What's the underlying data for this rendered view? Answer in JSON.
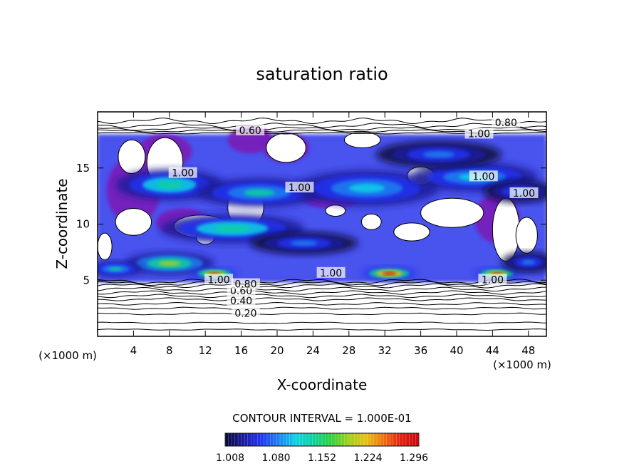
{
  "chart_data": {
    "type": "heatmap",
    "title": "saturation ratio",
    "xlabel": "X-coordinate",
    "ylabel": "Z-coordinate",
    "x_unit": "(×1000 m)",
    "x_unit_right": "(×1000 m)",
    "y_unit": "(×1000 m)",
    "xlim": [
      0,
      50
    ],
    "ylim": [
      0,
      20
    ],
    "x_ticks": [
      4,
      8,
      12,
      16,
      20,
      24,
      28,
      32,
      36,
      40,
      44,
      48
    ],
    "y_ticks": [
      5,
      10,
      15
    ],
    "contour_interval_label": "CONTOUR INTERVAL = 1.000E-01",
    "colorbar": {
      "min": 1.0,
      "max": 1.33,
      "tick_labels": [
        "1.008",
        "1.080",
        "1.152",
        "1.224",
        "1.296"
      ],
      "colors": [
        "#08083a",
        "#1a1a9a",
        "#2233ee",
        "#1e7ff0",
        "#10d0e8",
        "#10d0a0",
        "#30d040",
        "#a0d020",
        "#e8c018",
        "#f07010",
        "#e02010",
        "#c80c0c"
      ]
    },
    "contour_labels": [
      {
        "text": "0.20",
        "x": 16.5,
        "z": 2.0
      },
      {
        "text": "0.40",
        "x": 16.0,
        "z": 3.1
      },
      {
        "text": "0.60",
        "x": 16.0,
        "z": 4.0
      },
      {
        "text": "0.80",
        "x": 16.5,
        "z": 4.6
      },
      {
        "text": "1.00",
        "x": 13.5,
        "z": 5.0
      },
      {
        "text": "0.60",
        "x": 17.0,
        "z": 18.3
      },
      {
        "text": "0.80",
        "x": 45.5,
        "z": 19.0
      },
      {
        "text": "1.00",
        "x": 42.5,
        "z": 18.0
      },
      {
        "text": "1.00",
        "x": 43.0,
        "z": 14.2
      },
      {
        "text": "1.00",
        "x": 47.5,
        "z": 12.7
      },
      {
        "text": "1.00",
        "x": 22.5,
        "z": 13.2
      },
      {
        "text": "1.00",
        "x": 9.5,
        "z": 14.5
      },
      {
        "text": "1.00",
        "x": 44.0,
        "z": 5.0
      },
      {
        "text": "1.00",
        "x": 26.0,
        "z": 5.6
      }
    ],
    "high_regions": [
      {
        "x": 8,
        "z": 13.5,
        "rx": 6,
        "rz": 1.4,
        "value": 1.16
      },
      {
        "x": 18,
        "z": 12.8,
        "rx": 7,
        "rz": 1.3,
        "value": 1.14
      },
      {
        "x": 30,
        "z": 13.2,
        "rx": 8,
        "rz": 1.6,
        "value": 1.12
      },
      {
        "x": 42,
        "z": 14.2,
        "rx": 7,
        "rz": 1.3,
        "value": 1.12
      },
      {
        "x": 38,
        "z": 16.2,
        "rx": 7,
        "rz": 1.2,
        "value": 1.1
      },
      {
        "x": 47,
        "z": 12.9,
        "rx": 4,
        "rz": 1.0,
        "value": 1.1
      },
      {
        "x": 15,
        "z": 9.6,
        "rx": 8,
        "rz": 1.3,
        "value": 1.15
      },
      {
        "x": 23,
        "z": 8.3,
        "rx": 6,
        "rz": 1.0,
        "value": 1.1
      },
      {
        "x": 8,
        "z": 6.5,
        "rx": 5,
        "rz": 1.0,
        "value": 1.2
      },
      {
        "x": 13,
        "z": 5.6,
        "rx": 2.5,
        "rz": 0.5,
        "value": 1.29
      },
      {
        "x": 32.5,
        "z": 5.6,
        "rx": 3,
        "rz": 0.6,
        "value": 1.31
      },
      {
        "x": 44.5,
        "z": 5.6,
        "rx": 2.5,
        "rz": 0.5,
        "value": 1.28
      },
      {
        "x": 2,
        "z": 6.0,
        "rx": 3,
        "rz": 0.7,
        "value": 1.14
      },
      {
        "x": 48,
        "z": 6.6,
        "rx": 3,
        "rz": 0.9,
        "value": 1.1
      }
    ],
    "low_regions": [
      {
        "x": 3.8,
        "z": 16.0,
        "rx": 1.5,
        "rz": 1.5
      },
      {
        "x": 7.5,
        "z": 15.5,
        "rx": 2.0,
        "rz": 2.2
      },
      {
        "x": 16.5,
        "z": 11.5,
        "rx": 2.0,
        "rz": 1.8
      },
      {
        "x": 21.0,
        "z": 16.8,
        "rx": 2.2,
        "rz": 1.3
      },
      {
        "x": 4.0,
        "z": 10.2,
        "rx": 2.0,
        "rz": 1.2
      },
      {
        "x": 11.5,
        "z": 9.8,
        "rx": 3.0,
        "rz": 1.0
      },
      {
        "x": 45.5,
        "z": 9.5,
        "rx": 1.5,
        "rz": 2.8
      },
      {
        "x": 0.8,
        "z": 8.0,
        "rx": 0.8,
        "rz": 1.2
      }
    ],
    "grid": false
  }
}
